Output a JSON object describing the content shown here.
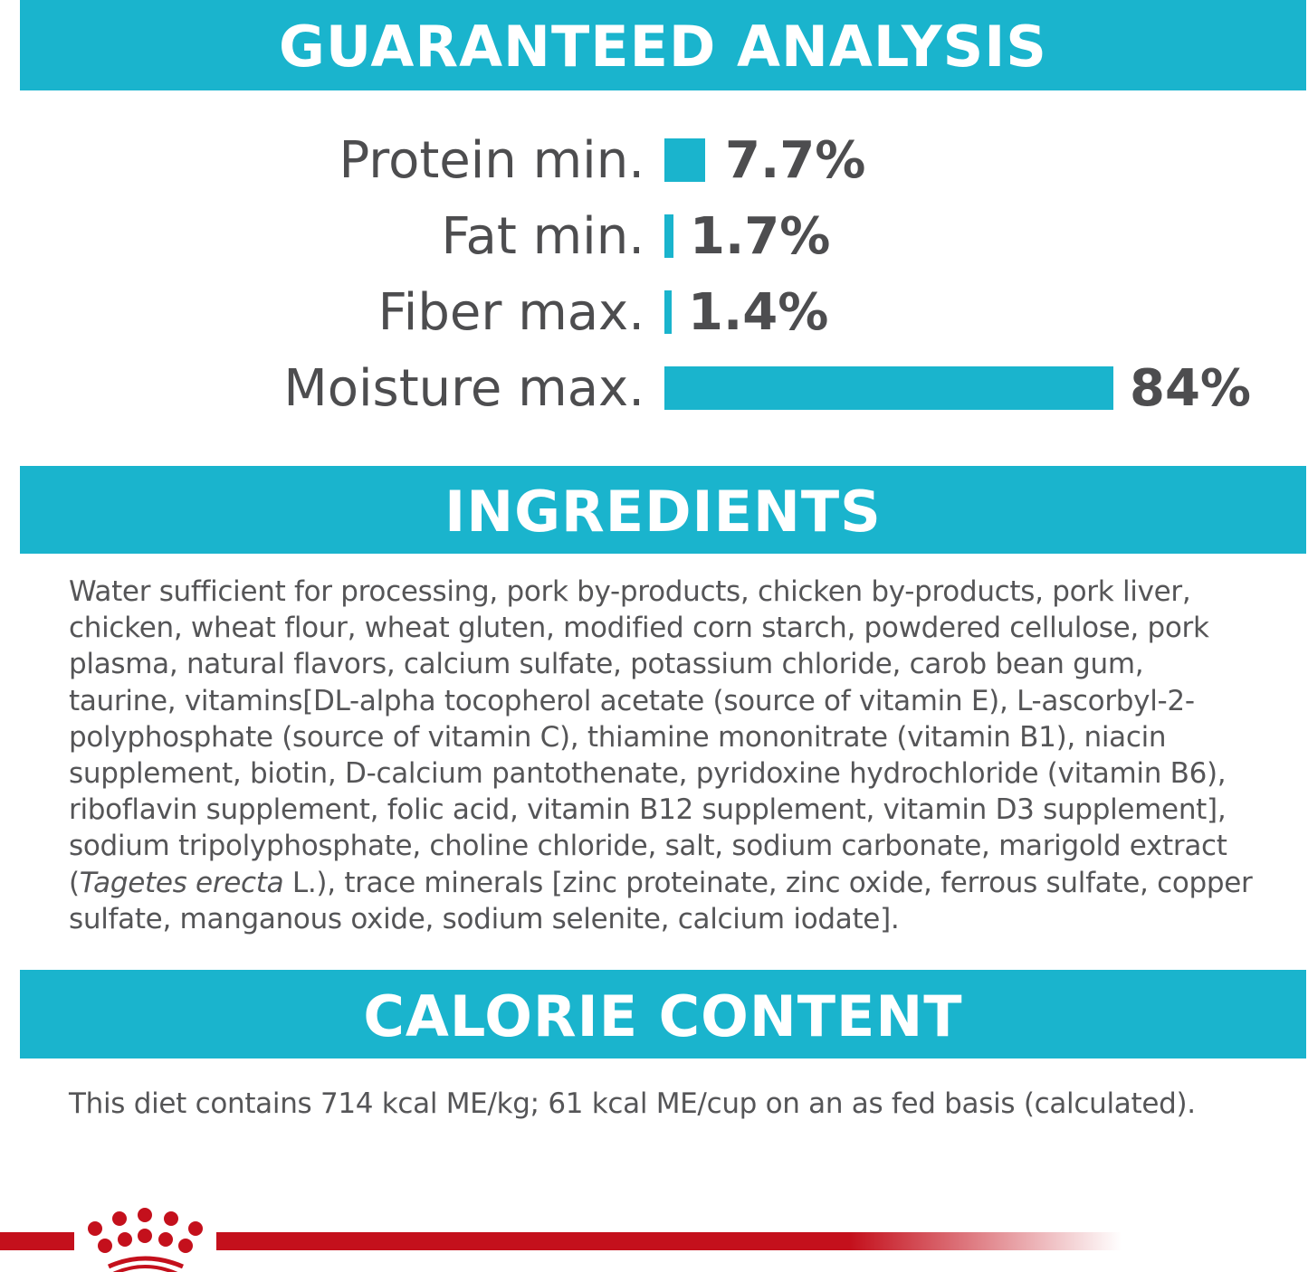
{
  "colors": {
    "accent": "#1ab4cd",
    "text": "#4d4d4f",
    "brand_red": "#c4101c"
  },
  "analysis": {
    "title": "GUARANTEED ANALYSIS",
    "items": [
      {
        "label": "Protein min.",
        "value": "7.7%",
        "percent": 7.7
      },
      {
        "label": "Fat min.",
        "value": "1.7%",
        "percent": 1.7
      },
      {
        "label": "Fiber max.",
        "value": "1.4%",
        "percent": 1.4
      },
      {
        "label": "Moisture max.",
        "value": "84%",
        "percent": 84
      }
    ]
  },
  "ingredients": {
    "title": "INGREDIENTS",
    "lines": [
      "Water sufficient for processing, pork by-products, chicken by-products, pork liver,",
      "chicken, wheat flour, wheat gluten, modified corn starch, powdered cellulose, pork",
      "plasma, natural flavors, calcium sulfate, potassium chloride, carob bean gum,",
      "taurine, vitamins[DL-alpha tocopherol acetate (source of vitamin E), L-ascorbyl-2-",
      "polyphosphate (source of vitamin C), thiamine mononitrate (vitamin B1), niacin",
      "supplement, biotin, D-calcium pantothenate, pyridoxine hydrochloride (vitamin B6),",
      "riboflavin supplement, folic acid, vitamin B12 supplement, vitamin D3 supplement],",
      "sodium tripolyphosphate, choline chloride, salt, sodium carbonate, marigold extract"
    ],
    "line9_pre": "(",
    "line9_italic": "Tagetes erecta",
    "line9_post": " L.), trace minerals [zinc proteinate, zinc oxide, ferrous sulfate, copper",
    "line10": "sulfate, manganous oxide, sodium selenite, calcium iodate]."
  },
  "calorie": {
    "title": "CALORIE CONTENT",
    "text": "This diet contains 714 kcal ME/kg; 61 kcal ME/cup on an as fed basis (calculated)."
  },
  "logo": {
    "icon": "royal-canin-crown-icon"
  }
}
